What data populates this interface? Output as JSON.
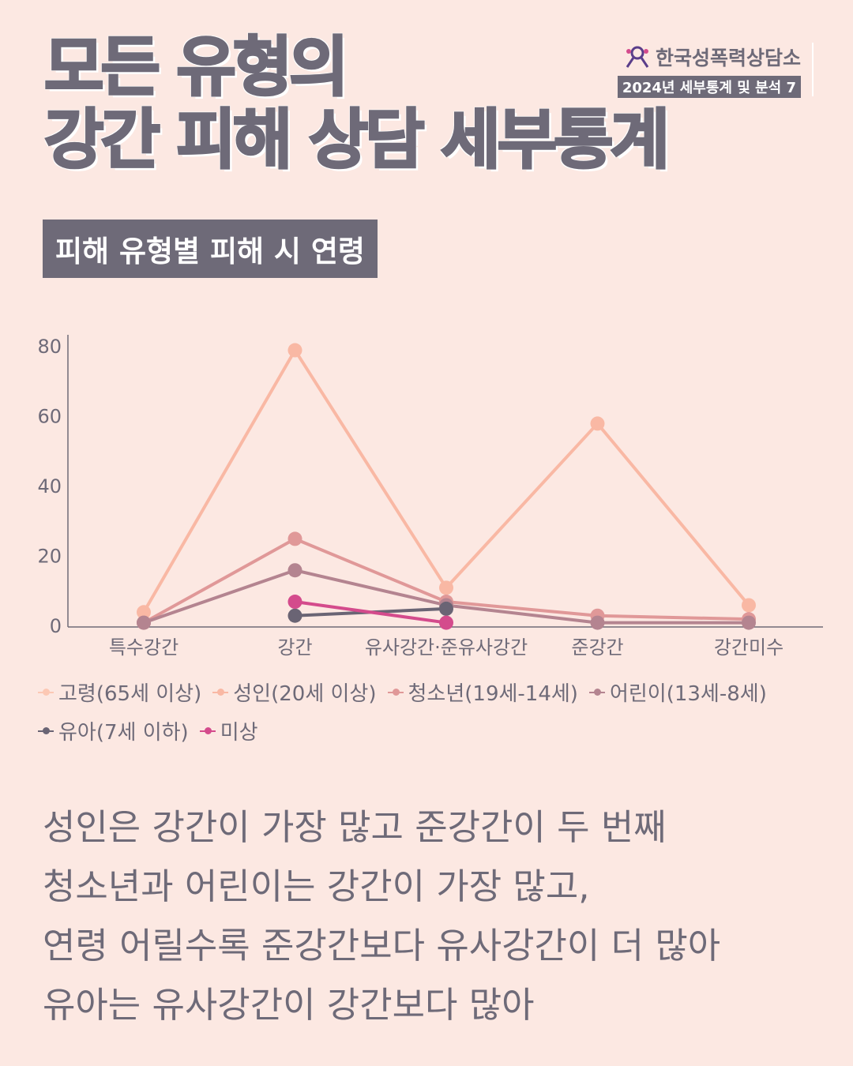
{
  "header": {
    "title_line1": "모든 유형의",
    "title_line2": "강간 피해 상담 세부통계",
    "brand_name": "한국성폭력상담소",
    "brand_sub": "2024년 세부통계 및 분석 7"
  },
  "subtitle": "피해 유형별 피해 시 연령",
  "chart_data": {
    "type": "line",
    "categories": [
      "특수강간",
      "강간",
      "유사강간·준유사강간",
      "준강간",
      "강간미수"
    ],
    "y_ticks": [
      "0",
      "20",
      "40",
      "60",
      "80"
    ],
    "ylim": [
      0,
      85
    ],
    "grid": false,
    "legend_position": "bottom",
    "series": [
      {
        "name": "고령(65세 이상)",
        "color": "#fcc8b4",
        "values": [
          null,
          null,
          null,
          null,
          null
        ]
      },
      {
        "name": "성인(20세 이상)",
        "color": "#f9b8a4",
        "values": [
          4,
          79,
          11,
          58,
          6
        ]
      },
      {
        "name": "청소년(19세-14세)",
        "color": "#e09898",
        "values": [
          1,
          25,
          7,
          3,
          2
        ]
      },
      {
        "name": "어린이(13세-8세)",
        "color": "#b48490",
        "values": [
          1,
          16,
          6,
          1,
          1
        ]
      },
      {
        "name": "유아(7세 이하)",
        "color": "#6a6474",
        "values": [
          null,
          3,
          5,
          null,
          null
        ]
      },
      {
        "name": "미상",
        "color": "#d44b8c",
        "values": [
          null,
          7,
          1,
          null,
          null
        ]
      }
    ]
  },
  "body_lines": [
    "성인은 강간이 가장 많고 준강간이 두 번째",
    "청소년과 어린이는 강간이 가장 많고,",
    "연령 어릴수록 준강간보다 유사강간이 더 많아",
    "유아는 유사강간이 강간보다 많아"
  ]
}
